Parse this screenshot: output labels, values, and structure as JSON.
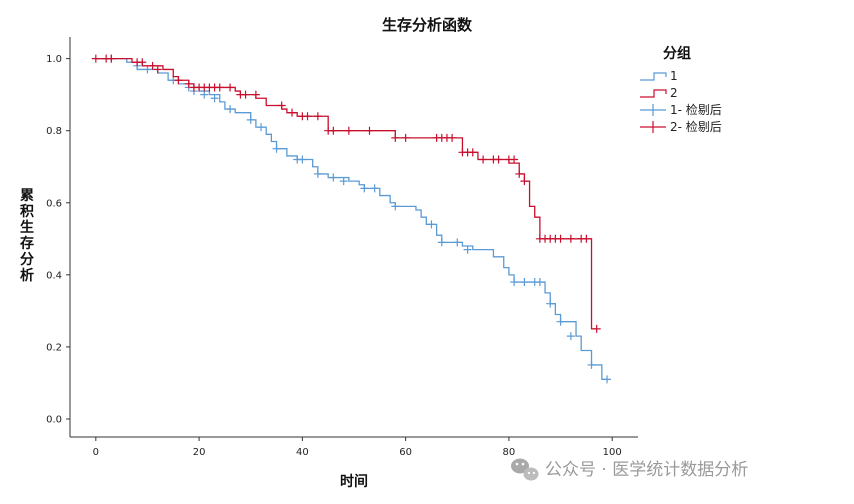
{
  "chart_data": {
    "type": "line",
    "title": "生存分析函数",
    "xlabel": "时间",
    "ylabel": "累积生存分析",
    "xlim": [
      -5,
      105
    ],
    "ylim": [
      -0.05,
      1.06
    ],
    "xticks": [
      "0",
      "20",
      "40",
      "60",
      "80",
      "100"
    ],
    "yticks": [
      "0.0",
      "0.2",
      "0.4",
      "0.6",
      "0.8",
      "1.0"
    ],
    "legend": {
      "title": "分组",
      "entries": [
        "1",
        "2",
        "1- 检剔后",
        "2- 检剔后"
      ],
      "placement": "right"
    },
    "series": [
      {
        "name": "1",
        "color": "#5b9bd5",
        "steps": [
          [
            0,
            1.0
          ],
          [
            6,
            0.99
          ],
          [
            8,
            0.97
          ],
          [
            12,
            0.96
          ],
          [
            14,
            0.94
          ],
          [
            16,
            0.93
          ],
          [
            18,
            0.92
          ],
          [
            20,
            0.91
          ],
          [
            22,
            0.9
          ],
          [
            24,
            0.88
          ],
          [
            25,
            0.86
          ],
          [
            27,
            0.85
          ],
          [
            30,
            0.83
          ],
          [
            31,
            0.81
          ],
          [
            33,
            0.79
          ],
          [
            34,
            0.77
          ],
          [
            35,
            0.75
          ],
          [
            37,
            0.73
          ],
          [
            39,
            0.72
          ],
          [
            42,
            0.7
          ],
          [
            43,
            0.68
          ],
          [
            45,
            0.67
          ],
          [
            49,
            0.66
          ],
          [
            51,
            0.65
          ],
          [
            52,
            0.64
          ],
          [
            55,
            0.62
          ],
          [
            57,
            0.6
          ],
          [
            58,
            0.59
          ],
          [
            62,
            0.58
          ],
          [
            63,
            0.56
          ],
          [
            64,
            0.54
          ],
          [
            66,
            0.51
          ],
          [
            67,
            0.49
          ],
          [
            71,
            0.48
          ],
          [
            73,
            0.47
          ],
          [
            77,
            0.45
          ],
          [
            79,
            0.42
          ],
          [
            80,
            0.4
          ],
          [
            81,
            0.38
          ],
          [
            87,
            0.35
          ],
          [
            88,
            0.32
          ],
          [
            89,
            0.29
          ],
          [
            90,
            0.27
          ],
          [
            93,
            0.23
          ],
          [
            94,
            0.19
          ],
          [
            95,
            0.19
          ],
          [
            96,
            0.15
          ],
          [
            98,
            0.11
          ],
          [
            99,
            0.11
          ]
        ],
        "censored": [
          [
            3,
            1.0
          ],
          [
            8,
            0.98
          ],
          [
            10,
            0.97
          ],
          [
            15,
            0.94
          ],
          [
            18,
            0.92
          ],
          [
            19,
            0.91
          ],
          [
            21,
            0.9
          ],
          [
            23,
            0.89
          ],
          [
            26,
            0.86
          ],
          [
            30,
            0.83
          ],
          [
            32,
            0.81
          ],
          [
            35,
            0.75
          ],
          [
            39,
            0.72
          ],
          [
            40,
            0.72
          ],
          [
            43,
            0.68
          ],
          [
            46,
            0.67
          ],
          [
            48,
            0.66
          ],
          [
            52,
            0.64
          ],
          [
            54,
            0.64
          ],
          [
            58,
            0.59
          ],
          [
            65,
            0.54
          ],
          [
            67,
            0.49
          ],
          [
            70,
            0.49
          ],
          [
            72,
            0.47
          ],
          [
            81,
            0.38
          ],
          [
            83,
            0.38
          ],
          [
            85,
            0.38
          ],
          [
            86,
            0.38
          ],
          [
            88,
            0.32
          ],
          [
            90,
            0.27
          ],
          [
            92,
            0.23
          ],
          [
            96,
            0.15
          ],
          [
            99,
            0.11
          ]
        ]
      },
      {
        "name": "2",
        "color": "#c8102e",
        "steps": [
          [
            0,
            1.0
          ],
          [
            7,
            0.99
          ],
          [
            9,
            0.98
          ],
          [
            13,
            0.97
          ],
          [
            15,
            0.95
          ],
          [
            16,
            0.94
          ],
          [
            18,
            0.93
          ],
          [
            19,
            0.92
          ],
          [
            27,
            0.91
          ],
          [
            28,
            0.9
          ],
          [
            31,
            0.89
          ],
          [
            33,
            0.87
          ],
          [
            36,
            0.86
          ],
          [
            37,
            0.85
          ],
          [
            39,
            0.84
          ],
          [
            45,
            0.8
          ],
          [
            58,
            0.78
          ],
          [
            71,
            0.74
          ],
          [
            74,
            0.72
          ],
          [
            80,
            0.71
          ],
          [
            82,
            0.68
          ],
          [
            83,
            0.66
          ],
          [
            84,
            0.59
          ],
          [
            85,
            0.56
          ],
          [
            86,
            0.5
          ],
          [
            96,
            0.25
          ],
          [
            97,
            0.25
          ]
        ],
        "censored": [
          [
            0,
            1.0
          ],
          [
            2,
            1.0
          ],
          [
            3,
            1.0
          ],
          [
            8,
            0.99
          ],
          [
            9,
            0.99
          ],
          [
            11,
            0.98
          ],
          [
            12,
            0.97
          ],
          [
            16,
            0.94
          ],
          [
            18,
            0.93
          ],
          [
            19,
            0.92
          ],
          [
            20,
            0.92
          ],
          [
            21,
            0.92
          ],
          [
            22,
            0.92
          ],
          [
            23,
            0.92
          ],
          [
            24,
            0.92
          ],
          [
            26,
            0.92
          ],
          [
            28,
            0.9
          ],
          [
            29,
            0.9
          ],
          [
            31,
            0.9
          ],
          [
            36,
            0.87
          ],
          [
            38,
            0.85
          ],
          [
            40,
            0.84
          ],
          [
            41,
            0.84
          ],
          [
            43,
            0.84
          ],
          [
            45,
            0.8
          ],
          [
            46,
            0.8
          ],
          [
            49,
            0.8
          ],
          [
            53,
            0.8
          ],
          [
            58,
            0.78
          ],
          [
            60,
            0.78
          ],
          [
            66,
            0.78
          ],
          [
            67,
            0.78
          ],
          [
            68,
            0.78
          ],
          [
            69,
            0.78
          ],
          [
            71,
            0.74
          ],
          [
            72,
            0.74
          ],
          [
            73,
            0.74
          ],
          [
            75,
            0.72
          ],
          [
            77,
            0.72
          ],
          [
            78,
            0.72
          ],
          [
            80,
            0.72
          ],
          [
            81,
            0.72
          ],
          [
            82,
            0.68
          ],
          [
            83,
            0.66
          ],
          [
            86,
            0.5
          ],
          [
            87,
            0.5
          ],
          [
            88,
            0.5
          ],
          [
            89,
            0.5
          ],
          [
            90,
            0.5
          ],
          [
            92,
            0.5
          ],
          [
            94,
            0.5
          ],
          [
            95,
            0.5
          ],
          [
            97,
            0.25
          ]
        ]
      }
    ],
    "watermark": "公众号 · 医学统计数据分析"
  }
}
